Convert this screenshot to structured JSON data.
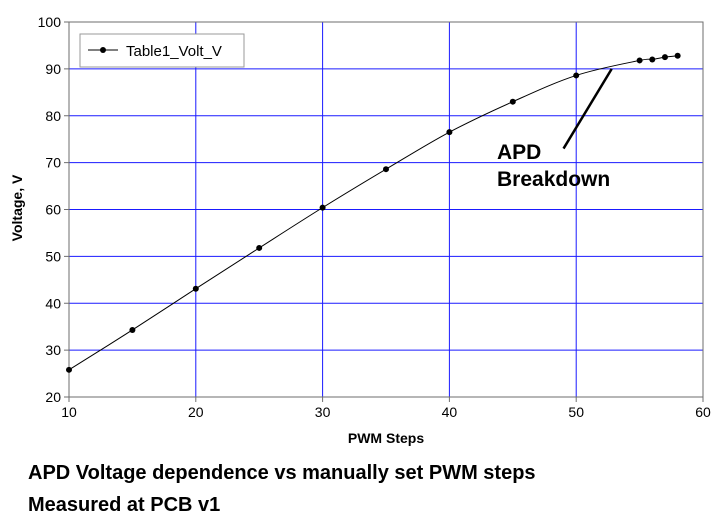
{
  "chart_data": {
    "type": "line",
    "xlabel": "PWM Steps",
    "ylabel": "Voltage, V",
    "xlim": [
      10,
      60
    ],
    "ylim": [
      20,
      100
    ],
    "xticks": [
      10,
      20,
      30,
      40,
      50,
      60
    ],
    "yticks": [
      20,
      30,
      40,
      50,
      60,
      70,
      80,
      90,
      100
    ],
    "grid": true,
    "legend": "top-left",
    "colors": {
      "grid": "#1a1aff",
      "line": "#000000",
      "frame": "#6e6e6e"
    },
    "series": [
      {
        "name": "Table1_Volt_V",
        "x": [
          10,
          15,
          20,
          25,
          30,
          35,
          40,
          45,
          50,
          55,
          56,
          57,
          58
        ],
        "y": [
          25.8,
          34.3,
          43.1,
          51.8,
          60.4,
          68.6,
          76.5,
          83.0,
          88.6,
          91.8,
          92.0,
          92.5,
          92.8
        ]
      }
    ],
    "annotations": [
      {
        "lines": [
          "APD",
          "Breakdown"
        ],
        "arrow_from": [
          49,
          73
        ],
        "arrow_to": [
          52.8,
          90
        ]
      }
    ]
  },
  "captions": {
    "line1": "APD Voltage dependence vs manually set PWM steps",
    "line2": "Measured at PCB v1"
  }
}
